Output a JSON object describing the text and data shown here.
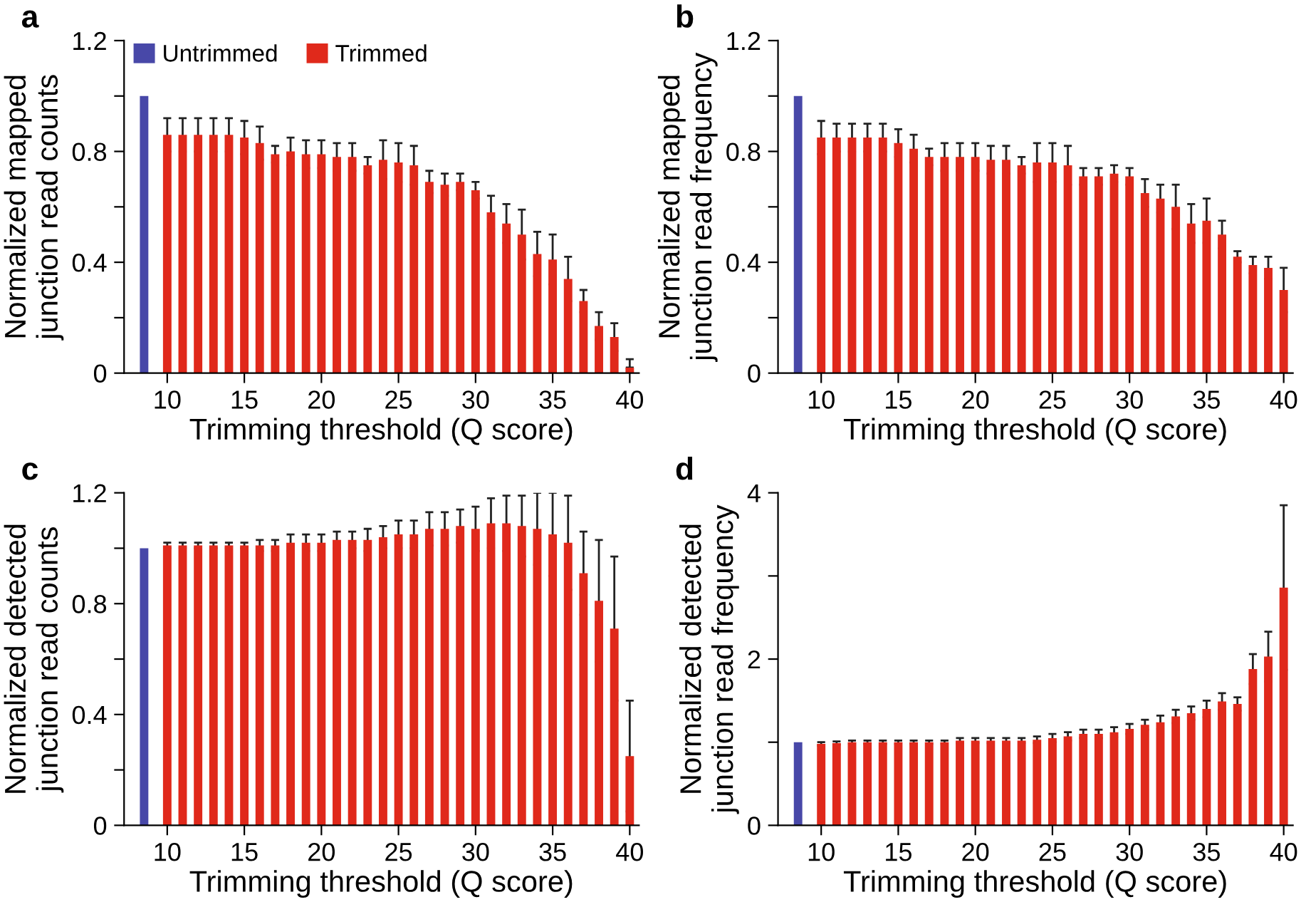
{
  "chart_data": [
    {
      "type": "bar",
      "title": "a",
      "xlabel": "Trimming threshold (Q score)",
      "ylabel": "Normalized mapped\njunction read counts",
      "legend": "top left",
      "xlim": [
        7.2,
        40.6
      ],
      "xticks": [
        10,
        15,
        20,
        25,
        30,
        35,
        40
      ],
      "ylim": [
        0,
        1.2
      ],
      "yticks": [
        0,
        {
          "value": 0.2,
          "label": null
        },
        0.4,
        {
          "value": 0.6,
          "label": null
        },
        0.8,
        {
          "value": 1.0,
          "label": null
        },
        1.2
      ],
      "series": [
        {
          "name": "Untrimmed",
          "color": "#4848a8",
          "x": [
            8.5
          ],
          "values": [
            1.0
          ]
        },
        {
          "name": "Trimmed",
          "color": "#e0291b",
          "x": [
            10,
            11,
            12,
            13,
            14,
            15,
            16,
            17,
            18,
            19,
            20,
            21,
            22,
            23,
            24,
            25,
            26,
            27,
            28,
            29,
            30,
            31,
            32,
            33,
            34,
            35,
            36,
            37,
            38,
            39,
            40
          ],
          "values": [
            0.86,
            0.86,
            0.86,
            0.86,
            0.86,
            0.85,
            0.83,
            0.79,
            0.8,
            0.79,
            0.79,
            0.78,
            0.78,
            0.75,
            0.77,
            0.76,
            0.75,
            0.69,
            0.68,
            0.69,
            0.66,
            0.58,
            0.54,
            0.5,
            0.43,
            0.41,
            0.34,
            0.26,
            0.17,
            0.13,
            0.02
          ],
          "errors": [
            0.06,
            0.06,
            0.06,
            0.06,
            0.06,
            0.06,
            0.06,
            0.03,
            0.05,
            0.05,
            0.05,
            0.05,
            0.05,
            0.03,
            0.07,
            0.07,
            0.07,
            0.04,
            0.04,
            0.03,
            0.03,
            0.06,
            0.07,
            0.09,
            0.08,
            0.09,
            0.08,
            0.04,
            0.05,
            0.05,
            [
              0.02,
              0.05
            ]
          ]
        }
      ]
    },
    {
      "type": "bar",
      "title": "b",
      "xlabel": "Trimming threshold (Q score)",
      "ylabel": "Normalized mapped\njunction read frequency",
      "xlim": [
        7.2,
        40.6
      ],
      "xticks": [
        10,
        15,
        20,
        25,
        30,
        35,
        40
      ],
      "ylim": [
        0,
        1.2
      ],
      "yticks": [
        0,
        {
          "value": 0.2,
          "label": null
        },
        0.4,
        {
          "value": 0.6,
          "label": null
        },
        0.8,
        {
          "value": 1.0,
          "label": null
        },
        1.2
      ],
      "series": [
        {
          "color": "#4848a8",
          "x": [
            8.5
          ],
          "values": [
            1.0
          ]
        },
        {
          "color": "#e0291b",
          "x": [
            10,
            11,
            12,
            13,
            14,
            15,
            16,
            17,
            18,
            19,
            20,
            21,
            22,
            23,
            24,
            25,
            26,
            27,
            28,
            29,
            30,
            31,
            32,
            33,
            34,
            35,
            36,
            37,
            38,
            39,
            40
          ],
          "values": [
            0.85,
            0.85,
            0.85,
            0.85,
            0.85,
            0.83,
            0.81,
            0.78,
            0.78,
            0.78,
            0.78,
            0.77,
            0.77,
            0.75,
            0.76,
            0.76,
            0.75,
            0.71,
            0.71,
            0.72,
            0.71,
            0.65,
            0.63,
            0.6,
            0.54,
            0.55,
            0.5,
            0.42,
            0.39,
            0.38,
            0.3
          ],
          "errors": [
            0.06,
            0.05,
            0.05,
            0.05,
            0.05,
            0.05,
            0.05,
            0.03,
            0.05,
            0.05,
            0.05,
            0.05,
            0.05,
            0.03,
            0.07,
            0.07,
            0.07,
            0.03,
            0.03,
            0.03,
            0.03,
            0.05,
            0.05,
            0.08,
            0.07,
            0.08,
            0.05,
            0.02,
            0.03,
            0.04,
            0.08
          ]
        }
      ]
    },
    {
      "type": "bar",
      "title": "c",
      "xlabel": "Trimming threshold (Q score)",
      "ylabel": "Normalized detected\njunction read counts",
      "xlim": [
        7.2,
        40.6
      ],
      "xticks": [
        10,
        15,
        20,
        25,
        30,
        35,
        40
      ],
      "ylim": [
        0,
        1.2
      ],
      "yticks": [
        0,
        {
          "value": 0.2,
          "label": null
        },
        0.4,
        {
          "value": 0.6,
          "label": null
        },
        0.8,
        {
          "value": 1.0,
          "label": null
        },
        1.2
      ],
      "series": [
        {
          "color": "#4848a8",
          "x": [
            8.5
          ],
          "values": [
            1.0
          ]
        },
        {
          "color": "#e0291b",
          "x": [
            10,
            11,
            12,
            13,
            14,
            15,
            16,
            17,
            18,
            19,
            20,
            21,
            22,
            23,
            24,
            25,
            26,
            27,
            28,
            29,
            30,
            31,
            32,
            33,
            34,
            35,
            36,
            37,
            38,
            39,
            40
          ],
          "values": [
            1.01,
            1.01,
            1.01,
            1.01,
            1.01,
            1.01,
            1.01,
            1.01,
            1.02,
            1.02,
            1.02,
            1.03,
            1.03,
            1.03,
            1.04,
            1.05,
            1.05,
            1.07,
            1.07,
            1.08,
            1.07,
            1.09,
            1.09,
            1.08,
            1.07,
            1.05,
            1.02,
            0.91,
            0.81,
            0.71,
            0.25
          ],
          "errors": [
            0.01,
            0.01,
            0.01,
            0.01,
            0.01,
            0.01,
            0.02,
            0.02,
            0.03,
            0.03,
            0.03,
            0.03,
            0.03,
            0.04,
            0.04,
            0.05,
            0.05,
            0.06,
            0.06,
            0.06,
            0.08,
            0.09,
            0.1,
            0.11,
            0.13,
            0.15,
            0.17,
            0.15,
            0.22,
            0.26,
            0.2
          ]
        }
      ]
    },
    {
      "type": "bar",
      "title": "d",
      "xlabel": "Trimming threshold (Q score)",
      "ylabel": "Normalized detected\njunction read frequency",
      "xlim": [
        7.2,
        40.6
      ],
      "xticks": [
        10,
        15,
        20,
        25,
        30,
        35,
        40
      ],
      "ylim": [
        0,
        4
      ],
      "yticks": [
        0,
        {
          "value": 1,
          "label": null
        },
        2,
        {
          "value": 3,
          "label": null
        },
        4
      ],
      "series": [
        {
          "color": "#4848a8",
          "x": [
            8.5
          ],
          "values": [
            1.0
          ]
        },
        {
          "color": "#e0291b",
          "x": [
            10,
            11,
            12,
            13,
            14,
            15,
            16,
            17,
            18,
            19,
            20,
            21,
            22,
            23,
            24,
            25,
            26,
            27,
            28,
            29,
            30,
            31,
            32,
            33,
            34,
            35,
            36,
            37,
            38,
            39,
            40
          ],
          "values": [
            0.98,
            0.99,
            1.0,
            1.0,
            1.0,
            1.0,
            1.0,
            1.0,
            1.0,
            1.02,
            1.02,
            1.02,
            1.02,
            1.02,
            1.03,
            1.05,
            1.07,
            1.1,
            1.1,
            1.12,
            1.16,
            1.21,
            1.24,
            1.31,
            1.35,
            1.4,
            1.49,
            1.46,
            1.88,
            2.03,
            2.86
          ],
          "errors": [
            0.02,
            0.02,
            0.02,
            0.02,
            0.02,
            0.02,
            0.02,
            0.02,
            0.02,
            0.03,
            0.03,
            0.03,
            0.03,
            0.03,
            0.04,
            0.05,
            0.05,
            0.05,
            0.05,
            0.06,
            0.06,
            0.06,
            0.08,
            0.08,
            0.08,
            0.1,
            0.1,
            0.08,
            0.18,
            0.3,
            0.99
          ]
        }
      ]
    }
  ]
}
